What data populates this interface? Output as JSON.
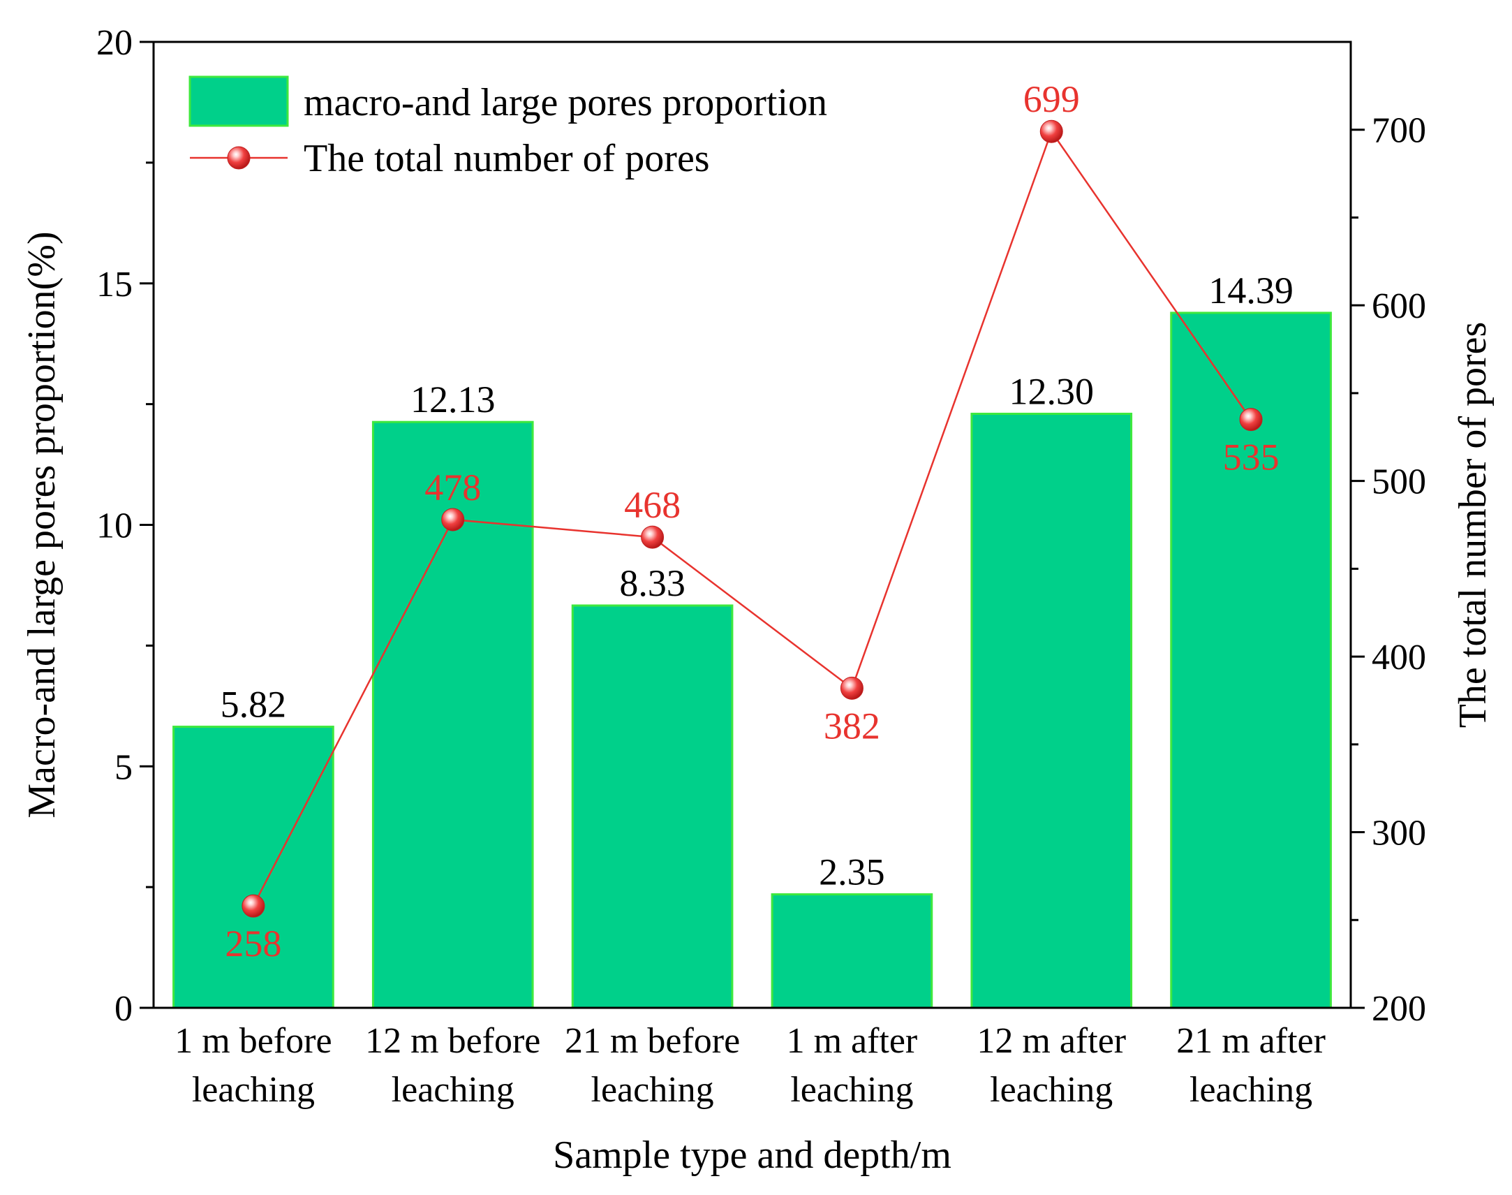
{
  "chart_data": {
    "type": "bar",
    "categories": [
      [
        "1 m before",
        "leaching"
      ],
      [
        "12 m before",
        "leaching"
      ],
      [
        "21 m before",
        "leaching"
      ],
      [
        "1 m after",
        "leaching"
      ],
      [
        "12 m after",
        "leaching"
      ],
      [
        "21 m after",
        "leaching"
      ]
    ],
    "xlabel": "Sample type and depth/m",
    "ylabel": "Macro-and large pores proportion(%)",
    "y2label": "The total number of pores",
    "ylim": [
      0,
      20
    ],
    "y2lim": [
      200,
      750
    ],
    "yticks": [
      0,
      5,
      10,
      15,
      20
    ],
    "y2ticks": [
      200,
      300,
      400,
      500,
      600,
      700
    ],
    "series": [
      {
        "name": "macro-and large pores proportion",
        "type": "bar",
        "axis": "left",
        "values": [
          5.82,
          12.13,
          8.33,
          2.35,
          12.3,
          14.39
        ],
        "labels": [
          "5.82",
          "12.13",
          "8.33",
          "2.35",
          "12.30",
          "14.39"
        ],
        "color": "#00d08a",
        "edge_color": "#3ee83e"
      },
      {
        "name": "The total number of pores",
        "type": "line",
        "axis": "right",
        "values": [
          258,
          478,
          468,
          382,
          699,
          535
        ],
        "labels": [
          "258",
          "478",
          "468",
          "382",
          "699",
          "535"
        ],
        "label_position": [
          "below",
          "above",
          "above",
          "below",
          "above",
          "below"
        ],
        "color": "#e8332e"
      }
    ],
    "legend_position": "top-left",
    "grid": false
  }
}
